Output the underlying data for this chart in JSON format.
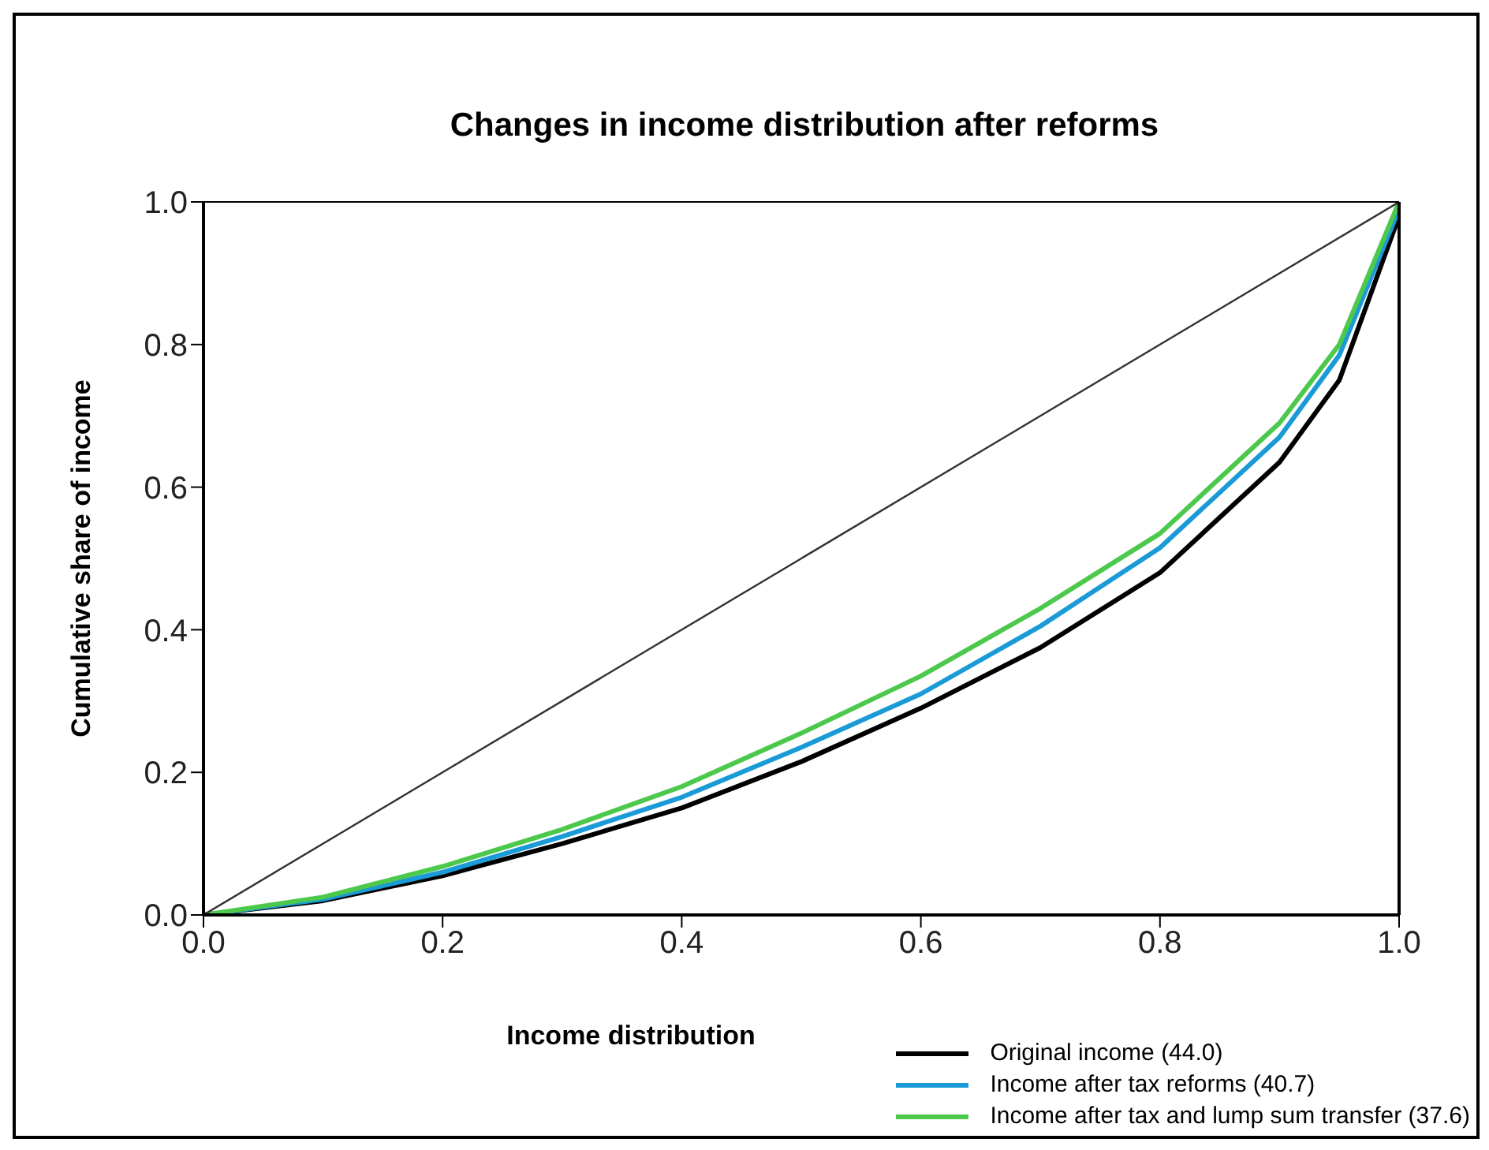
{
  "chart_data": {
    "type": "line",
    "title": "Changes in income distribution after reforms",
    "xlabel": "Income distribution",
    "ylabel": "Cumulative share of income",
    "x": [
      0,
      0.1,
      0.2,
      0.3,
      0.4,
      0.5,
      0.6,
      0.7,
      0.8,
      0.9,
      0.95,
      1.0
    ],
    "series": [
      {
        "name": "Original income (44.0)",
        "color": "#000000",
        "values": [
          0,
          0.02,
          0.055,
          0.1,
          0.15,
          0.215,
          0.29,
          0.375,
          0.48,
          0.635,
          0.75,
          0.98
        ]
      },
      {
        "name": "Income after tax reforms (40.7)",
        "color": "#1a9ad6",
        "values": [
          0,
          0.022,
          0.06,
          0.11,
          0.165,
          0.235,
          0.31,
          0.405,
          0.515,
          0.67,
          0.785,
          0.99
        ]
      },
      {
        "name": "Income after tax and lump sum transfer (37.6)",
        "color": "#4cc94c",
        "values": [
          0,
          0.025,
          0.068,
          0.12,
          0.18,
          0.255,
          0.335,
          0.43,
          0.535,
          0.69,
          0.8,
          1.0
        ]
      },
      {
        "color": "#333333",
        "x": [
          0,
          1
        ],
        "values": [
          0,
          1
        ]
      }
    ],
    "xlim": [
      0,
      1
    ],
    "ylim": [
      0,
      1
    ],
    "xticks": [
      {
        "value": 0,
        "label": "0.0"
      },
      0.2,
      0.4,
      0.6,
      0.8,
      {
        "value": 1,
        "label": "1.0"
      }
    ],
    "yticks": [
      {
        "value": 0,
        "label": "0.0"
      },
      0.2,
      0.4,
      0.6,
      0.8,
      {
        "value": 1,
        "label": "1.0"
      }
    ],
    "legend": "bottom right",
    "grid": false,
    "marker": "none",
    "line_style": "solid"
  }
}
